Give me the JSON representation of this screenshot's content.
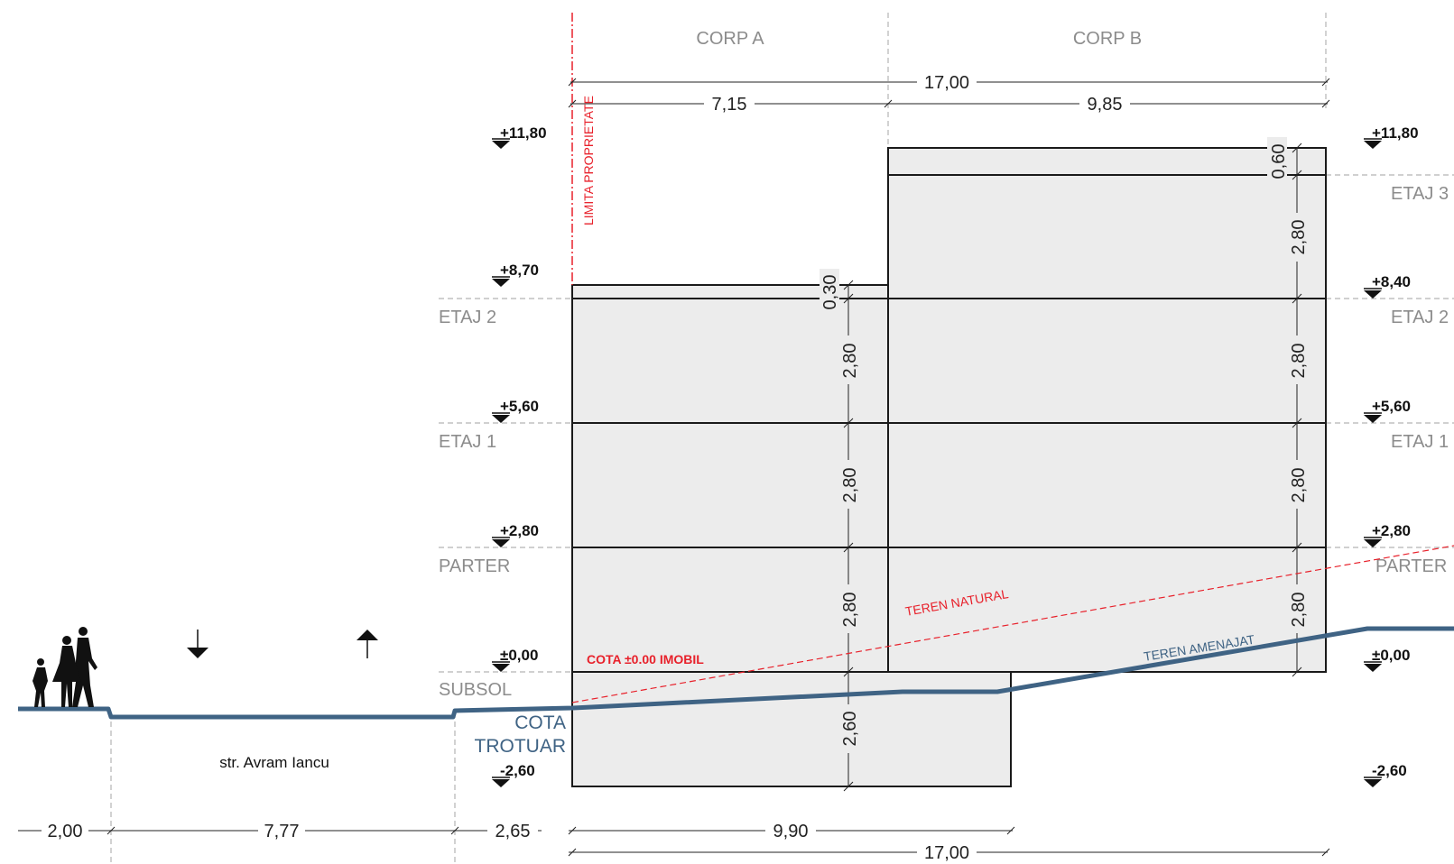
{
  "buildings": {
    "corp_a": "CORP A",
    "corp_b": "CORP B"
  },
  "property_limit": "LIMITA PROPRIETATE",
  "levels_left": [
    "+11,80",
    "+8,70",
    "+5,60",
    "+2,80",
    "±0,00",
    "-2,60"
  ],
  "levels_right": [
    "+11,80",
    "+8,40",
    "+5,60",
    "+2,80",
    "±0,00",
    "-2,60"
  ],
  "floors_left": [
    "ETAJ 2",
    "ETAJ 1",
    "PARTER",
    "SUBSOL"
  ],
  "floors_right": [
    "ETAJ 3",
    "ETAJ 2",
    "ETAJ 1",
    "PARTER"
  ],
  "top_dims": {
    "total": "17,00",
    "corp_a": "7,15",
    "corp_b": "9,85"
  },
  "vertical_dims": {
    "corp_a": [
      "0,30",
      "2,80",
      "2,80",
      "2,80",
      "2,60"
    ],
    "corp_b": [
      "0,60",
      "2,80",
      "2,80",
      "2,80",
      "2,80"
    ]
  },
  "bottom_dims": {
    "d1": "2,00",
    "d2": "7,77",
    "d3": "2,65",
    "d4": "9,90",
    "d5": "17,00"
  },
  "labels": {
    "street": "str. Avram Iancu",
    "cota_trotuar_1": "COTA",
    "cota_trotuar_2": "TROTUAR",
    "cota_imobil": "COTA ±0.00 IMOBIL",
    "teren_natural": "TEREN NATURAL",
    "teren_amenajat": "TEREN AMENAJAT"
  },
  "colors": {
    "building_fill": "#ececec",
    "ground": "#3f6384",
    "red": "#e8212b",
    "gray_text": "#8c8c8c"
  }
}
